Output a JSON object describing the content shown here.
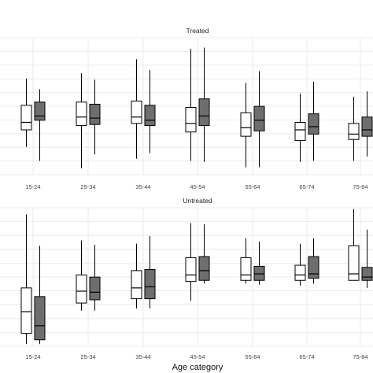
{
  "chart_data": {
    "type": "boxplot",
    "xlabel": "Age category",
    "ylabel": "",
    "categories": [
      "15-24",
      "25-34",
      "35-44",
      "45-54",
      "55-64",
      "65-74",
      "75-84"
    ],
    "colors": {
      "group_a": "#ffffff",
      "group_b": "#6e6e6e",
      "stroke": "#000000",
      "grid": "#e6e6e6"
    },
    "ylim": [
      0,
      100
    ],
    "panels": [
      {
        "title": "Treated",
        "groups": [
          [
            {
              "min": 26,
              "q1": 42,
              "median": 49,
              "q3": 65,
              "max": 90
            },
            {
              "min": 13,
              "q1": 51,
              "median": 55,
              "q3": 68,
              "max": 80
            }
          ],
          [
            {
              "min": 6,
              "q1": 46,
              "median": 54,
              "q3": 68,
              "max": 95
            },
            {
              "min": 19,
              "q1": 47,
              "median": 53,
              "q3": 66,
              "max": 89
            }
          ],
          [
            {
              "min": 15,
              "q1": 48,
              "median": 54,
              "q3": 69,
              "max": 108
            },
            {
              "min": 20,
              "q1": 46,
              "median": 51,
              "q3": 65,
              "max": 98
            }
          ],
          [
            {
              "min": 13,
              "q1": 40,
              "median": 48,
              "q3": 63,
              "max": 118
            },
            {
              "min": 12,
              "q1": 46,
              "median": 55,
              "q3": 71,
              "max": 119
            }
          ],
          [
            {
              "min": 7,
              "q1": 36,
              "median": 44,
              "q3": 58,
              "max": 86
            },
            {
              "min": 7,
              "q1": 41,
              "median": 51,
              "q3": 64,
              "max": 97
            }
          ],
          [
            {
              "min": 12,
              "q1": 32,
              "median": 42,
              "q3": 49,
              "max": 76
            },
            {
              "min": 13,
              "q1": 38,
              "median": 45,
              "q3": 57,
              "max": 87
            }
          ],
          [
            {
              "min": 13,
              "q1": 33,
              "median": 38,
              "q3": 48,
              "max": 73
            },
            {
              "min": 17,
              "q1": 36,
              "median": 42,
              "q3": 54,
              "max": 78
            }
          ]
        ]
      },
      {
        "title": "Untreated",
        "groups": [
          [
            {
              "min": 2,
              "q1": 12,
              "median": 32,
              "q3": 54,
              "max": 122
            },
            {
              "min": 2,
              "q1": 6,
              "median": 19,
              "q3": 46,
              "max": 93
            }
          ],
          [
            {
              "min": 33,
              "q1": 40,
              "median": 51,
              "q3": 66,
              "max": 98
            },
            {
              "min": 33,
              "q1": 43,
              "median": 50,
              "q3": 64,
              "max": 94
            }
          ],
          [
            {
              "min": 35,
              "q1": 44,
              "median": 54,
              "q3": 70,
              "max": 95
            },
            {
              "min": 35,
              "q1": 44,
              "median": 55,
              "q3": 71,
              "max": 102
            }
          ],
          [
            {
              "min": 42,
              "q1": 60,
              "median": 66,
              "q3": 82,
              "max": 114
            },
            {
              "min": 58,
              "q1": 61,
              "median": 70,
              "q3": 83,
              "max": 113
            }
          ],
          [
            {
              "min": 58,
              "q1": 61,
              "median": 66,
              "q3": 82,
              "max": 100
            },
            {
              "min": 57,
              "q1": 61,
              "median": 67,
              "q3": 74,
              "max": 97
            }
          ],
          [
            {
              "min": 56,
              "q1": 61,
              "median": 66,
              "q3": 75,
              "max": 95
            },
            {
              "min": 58,
              "q1": 63,
              "median": 67,
              "q3": 83,
              "max": 100
            }
          ],
          [
            {
              "min": 61,
              "q1": 61,
              "median": 67,
              "q3": 93,
              "max": 127
            },
            {
              "min": 54,
              "q1": 61,
              "median": 64,
              "q3": 73,
              "max": 108
            }
          ]
        ]
      }
    ]
  }
}
